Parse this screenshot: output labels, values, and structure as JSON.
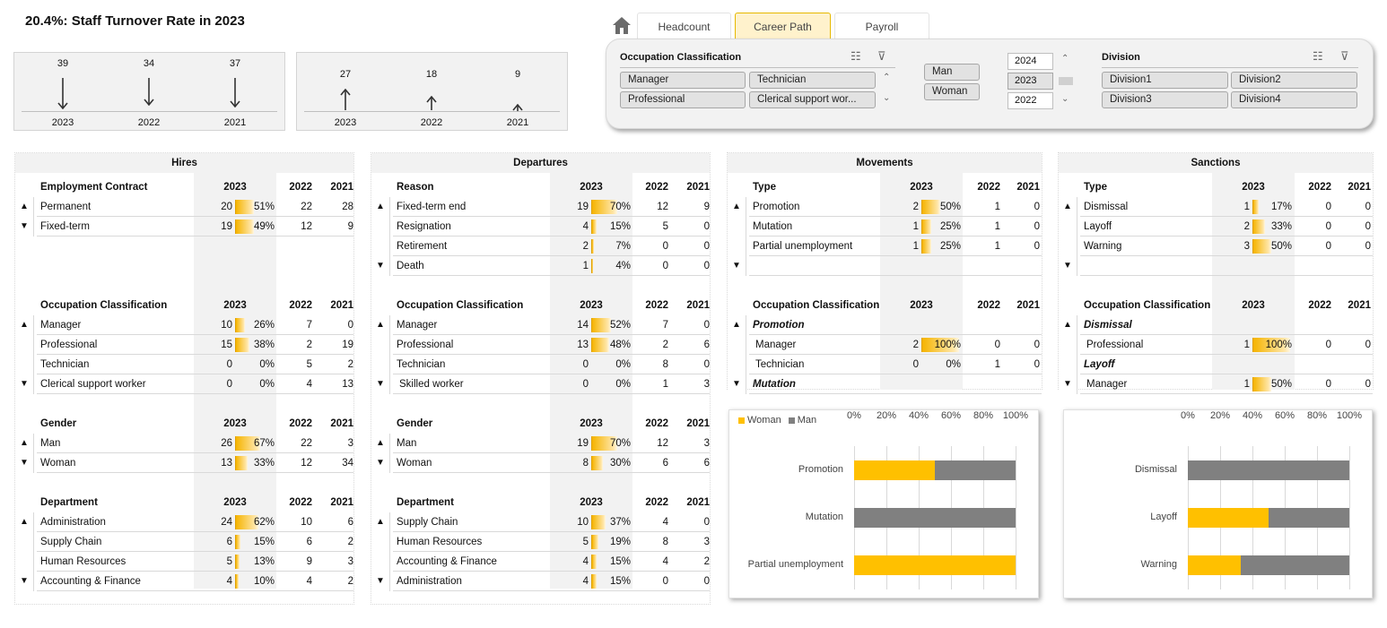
{
  "title": "20.4%: Staff Turnover Rate in 2023",
  "kpi_hires": [
    {
      "value": "39",
      "year": "2023",
      "dir": "down"
    },
    {
      "value": "34",
      "year": "2022",
      "dir": "down"
    },
    {
      "value": "37",
      "year": "2021",
      "dir": "down"
    }
  ],
  "kpi_departures": [
    {
      "value": "27",
      "year": "2023",
      "dir": "up"
    },
    {
      "value": "18",
      "year": "2022",
      "dir": "up"
    },
    {
      "value": "9",
      "year": "2021",
      "dir": "up"
    }
  ],
  "tabs": {
    "headcount": "Headcount",
    "career": "Career Path",
    "payroll": "Payroll"
  },
  "slicers": {
    "occ": {
      "title": "Occupation Classification",
      "items": [
        "Manager",
        "Technician",
        "Professional",
        "Clerical support wor..."
      ]
    },
    "gender": {
      "items": [
        "Man",
        "Woman"
      ]
    },
    "years": {
      "items": [
        "2024",
        "2023",
        "2022"
      ],
      "selected": "2023"
    },
    "division": {
      "title": "Division",
      "items": [
        "Division1",
        "Division2",
        "Division3",
        "Division4"
      ]
    }
  },
  "cards": [
    {
      "title": "Hires",
      "sections": [
        {
          "head": "Employment Contract",
          "rows": [
            {
              "label": "Permanent",
              "v": "20",
              "pct": "51%",
              "p": 0.51,
              "a": "22",
              "b": "28"
            },
            {
              "label": "Fixed-term",
              "v": "19",
              "pct": "49%",
              "p": 0.49,
              "a": "12",
              "b": "9"
            }
          ]
        },
        {
          "head": "Occupation Classification",
          "rows": [
            {
              "label": "Manager",
              "v": "10",
              "pct": "26%",
              "p": 0.26,
              "a": "7",
              "b": "0"
            },
            {
              "label": "Professional",
              "v": "15",
              "pct": "38%",
              "p": 0.38,
              "a": "2",
              "b": "19"
            },
            {
              "label": "Technician",
              "v": "0",
              "pct": "0%",
              "p": 0,
              "a": "5",
              "b": "2"
            },
            {
              "label": "Clerical support worker",
              "v": "0",
              "pct": "0%",
              "p": 0,
              "a": "4",
              "b": "13"
            }
          ]
        },
        {
          "head": "Gender",
          "rows": [
            {
              "label": "Man",
              "v": "26",
              "pct": "67%",
              "p": 0.67,
              "a": "22",
              "b": "3"
            },
            {
              "label": "Woman",
              "v": "13",
              "pct": "33%",
              "p": 0.33,
              "a": "12",
              "b": "34"
            }
          ]
        },
        {
          "head": "Department",
          "rows": [
            {
              "label": "Administration",
              "v": "24",
              "pct": "62%",
              "p": 0.62,
              "a": "10",
              "b": "6"
            },
            {
              "label": "Supply Chain",
              "v": "6",
              "pct": "15%",
              "p": 0.15,
              "a": "6",
              "b": "2"
            },
            {
              "label": "Human Resources",
              "v": "5",
              "pct": "13%",
              "p": 0.13,
              "a": "9",
              "b": "3"
            },
            {
              "label": "Accounting & Finance",
              "v": "4",
              "pct": "10%",
              "p": 0.1,
              "a": "4",
              "b": "2"
            }
          ]
        }
      ]
    },
    {
      "title": "Departures",
      "sections": [
        {
          "head": "Reason",
          "rows": [
            {
              "label": "Fixed-term end",
              "v": "19",
              "pct": "70%",
              "p": 0.7,
              "a": "12",
              "b": "9"
            },
            {
              "label": "Resignation",
              "v": "4",
              "pct": "15%",
              "p": 0.15,
              "a": "5",
              "b": "0"
            },
            {
              "label": "Retirement",
              "v": "2",
              "pct": "7%",
              "p": 0.07,
              "a": "0",
              "b": "0"
            },
            {
              "label": "Death",
              "v": "1",
              "pct": "4%",
              "p": 0.04,
              "a": "0",
              "b": "0"
            }
          ]
        },
        {
          "head": "Occupation Classification",
          "rows": [
            {
              "label": "Manager",
              "v": "14",
              "pct": "52%",
              "p": 0.52,
              "a": "7",
              "b": "0"
            },
            {
              "label": "Professional",
              "v": "13",
              "pct": "48%",
              "p": 0.48,
              "a": "2",
              "b": "6"
            },
            {
              "label": "Technician",
              "v": "0",
              "pct": "0%",
              "p": 0,
              "a": "8",
              "b": "0"
            },
            {
              "label": " Skilled worker",
              "v": "0",
              "pct": "0%",
              "p": 0,
              "a": "1",
              "b": "3"
            }
          ]
        },
        {
          "head": "Gender",
          "rows": [
            {
              "label": "Man",
              "v": "19",
              "pct": "70%",
              "p": 0.7,
              "a": "12",
              "b": "3"
            },
            {
              "label": "Woman",
              "v": "8",
              "pct": "30%",
              "p": 0.3,
              "a": "6",
              "b": "6"
            }
          ]
        },
        {
          "head": "Department",
          "rows": [
            {
              "label": "Supply Chain",
              "v": "10",
              "pct": "37%",
              "p": 0.37,
              "a": "4",
              "b": "0"
            },
            {
              "label": "Human Resources",
              "v": "5",
              "pct": "19%",
              "p": 0.19,
              "a": "8",
              "b": "3"
            },
            {
              "label": "Accounting & Finance",
              "v": "4",
              "pct": "15%",
              "p": 0.15,
              "a": "4",
              "b": "2"
            },
            {
              "label": "Administration",
              "v": "4",
              "pct": "15%",
              "p": 0.15,
              "a": "0",
              "b": "0"
            }
          ]
        }
      ]
    },
    {
      "title": "Movements",
      "sections": [
        {
          "head": "Type",
          "rows": [
            {
              "label": "Promotion",
              "v": "2",
              "pct": "50%",
              "p": 0.5,
              "a": "1",
              "b": "0"
            },
            {
              "label": "Mutation",
              "v": "1",
              "pct": "25%",
              "p": 0.25,
              "a": "1",
              "b": "0"
            },
            {
              "label": "Partial unemployment",
              "v": "1",
              "pct": "25%",
              "p": 0.25,
              "a": "1",
              "b": "0"
            }
          ]
        },
        {
          "head": "Occupation Classification",
          "rows": [
            {
              "label": "Promotion",
              "group": true
            },
            {
              "label": " Manager",
              "v": "2",
              "pct": "100%",
              "p": 1,
              "a": "0",
              "b": "0"
            },
            {
              "label": " Technician",
              "v": "0",
              "pct": "0%",
              "p": 0,
              "a": "1",
              "b": "0"
            },
            {
              "label": "Mutation",
              "group": true
            }
          ]
        }
      ]
    },
    {
      "title": "Sanctions",
      "sections": [
        {
          "head": "Type",
          "rows": [
            {
              "label": "Dismissal",
              "v": "1",
              "pct": "17%",
              "p": 0.17,
              "a": "0",
              "b": "0"
            },
            {
              "label": "Layoff",
              "v": "2",
              "pct": "33%",
              "p": 0.33,
              "a": "0",
              "b": "0"
            },
            {
              "label": "Warning",
              "v": "3",
              "pct": "50%",
              "p": 0.5,
              "a": "0",
              "b": "0"
            }
          ]
        },
        {
          "head": "Occupation Classification",
          "rows": [
            {
              "label": "Dismissal",
              "group": true
            },
            {
              "label": " Professional",
              "v": "1",
              "pct": "100%",
              "p": 1,
              "a": "0",
              "b": "0"
            },
            {
              "label": "Layoff",
              "group": true
            },
            {
              "label": " Manager",
              "v": "1",
              "pct": "50%",
              "p": 0.5,
              "a": "0",
              "b": "0"
            }
          ]
        }
      ]
    }
  ],
  "year_headers": [
    "2023",
    "2022",
    "2021"
  ],
  "colors": {
    "woman": "#ffc000",
    "man": "#808080",
    "accent": "#f5b400"
  },
  "chart_data": [
    {
      "type": "bar",
      "stacked": "100%",
      "orientation": "horizontal",
      "categories": [
        "Promotion",
        "Mutation",
        "Partial unemployment"
      ],
      "series": [
        {
          "name": "Woman",
          "values": [
            50,
            0,
            100
          ]
        },
        {
          "name": "Man",
          "values": [
            50,
            100,
            0
          ]
        }
      ],
      "xlim": [
        0,
        100
      ],
      "xticks": [
        "0%",
        "20%",
        "40%",
        "60%",
        "80%",
        "100%"
      ],
      "legend": "top-left"
    },
    {
      "type": "bar",
      "stacked": "100%",
      "orientation": "horizontal",
      "categories": [
        "Dismissal",
        "Layoff",
        "Warning"
      ],
      "series": [
        {
          "name": "Woman",
          "values": [
            0,
            50,
            33
          ]
        },
        {
          "name": "Man",
          "values": [
            100,
            50,
            67
          ]
        }
      ],
      "xlim": [
        0,
        100
      ],
      "xticks": [
        "0%",
        "20%",
        "40%",
        "60%",
        "80%",
        "100%"
      ]
    }
  ]
}
